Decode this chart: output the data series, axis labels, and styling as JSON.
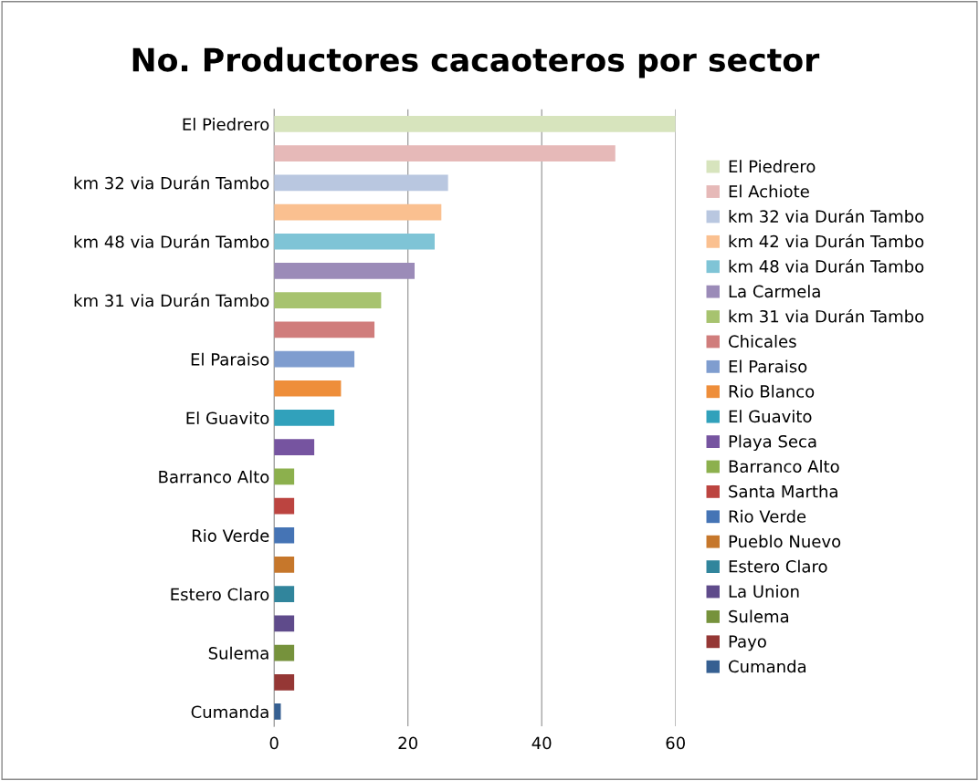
{
  "chart_data": {
    "type": "bar",
    "orientation": "horizontal",
    "stacked": true,
    "title": "No. Productores cacaoteros por sector",
    "categories": [
      "El Piedrero",
      null,
      "km 32 via Durán Tambo",
      null,
      "km 48 via Durán Tambo",
      null,
      "km 31 via Durán Tambo",
      null,
      "El Paraiso",
      null,
      "El Guavito",
      null,
      "Barranco Alto",
      null,
      "Rio Verde",
      null,
      "Estero Claro",
      null,
      "Sulema",
      null,
      "Cumanda"
    ],
    "series": [
      {
        "name": "El Piedrero",
        "color": "#d7e4bd",
        "values": [
          60,
          null,
          null,
          null,
          null,
          null,
          null,
          null,
          null,
          null,
          null,
          null,
          null,
          null,
          null,
          null,
          null,
          null,
          null,
          null,
          null
        ]
      },
      {
        "name": "El Achiote",
        "color": "#e6b9b8",
        "values": [
          null,
          51,
          null,
          null,
          null,
          null,
          null,
          null,
          null,
          null,
          null,
          null,
          null,
          null,
          null,
          null,
          null,
          null,
          null,
          null,
          null
        ]
      },
      {
        "name": "km 32 via Durán Tambo",
        "color": "#b9c7e0",
        "values": [
          null,
          null,
          26,
          null,
          null,
          null,
          null,
          null,
          null,
          null,
          null,
          null,
          null,
          null,
          null,
          null,
          null,
          null,
          null,
          null,
          null
        ]
      },
      {
        "name": "km 42 via Durán Tambo",
        "color": "#fac090",
        "values": [
          null,
          null,
          null,
          25,
          null,
          null,
          null,
          null,
          null,
          null,
          null,
          null,
          null,
          null,
          null,
          null,
          null,
          null,
          null,
          null,
          null
        ]
      },
      {
        "name": "km 48 via Durán Tambo",
        "color": "#7fc4d6",
        "values": [
          null,
          null,
          null,
          null,
          24,
          null,
          null,
          null,
          null,
          null,
          null,
          null,
          null,
          null,
          null,
          null,
          null,
          null,
          null,
          null,
          null
        ]
      },
      {
        "name": "La Carmela",
        "color": "#9b8bb8",
        "values": [
          null,
          null,
          null,
          null,
          null,
          21,
          null,
          null,
          null,
          null,
          null,
          null,
          null,
          null,
          null,
          null,
          null,
          null,
          null,
          null,
          null
        ]
      },
      {
        "name": "km 31 via Durán Tambo",
        "color": "#a7c36f",
        "values": [
          null,
          null,
          null,
          null,
          null,
          null,
          16,
          null,
          null,
          null,
          null,
          null,
          null,
          null,
          null,
          null,
          null,
          null,
          null,
          null,
          null
        ]
      },
      {
        "name": "Chicales",
        "color": "#d07d7c",
        "values": [
          null,
          null,
          null,
          null,
          null,
          null,
          null,
          15,
          null,
          null,
          null,
          null,
          null,
          null,
          null,
          null,
          null,
          null,
          null,
          null,
          null
        ]
      },
      {
        "name": "El Paraiso",
        "color": "#7f9dcf",
        "values": [
          null,
          null,
          null,
          null,
          null,
          null,
          null,
          null,
          12,
          null,
          null,
          null,
          null,
          null,
          null,
          null,
          null,
          null,
          null,
          null,
          null
        ]
      },
      {
        "name": "Rio Blanco",
        "color": "#ee8e3a",
        "values": [
          null,
          null,
          null,
          null,
          null,
          null,
          null,
          null,
          null,
          10,
          null,
          null,
          null,
          null,
          null,
          null,
          null,
          null,
          null,
          null,
          null
        ]
      },
      {
        "name": "El Guavito",
        "color": "#31a1bb",
        "values": [
          null,
          null,
          null,
          null,
          null,
          null,
          null,
          null,
          null,
          null,
          9,
          null,
          null,
          null,
          null,
          null,
          null,
          null,
          null,
          null,
          null
        ]
      },
      {
        "name": "Playa Seca",
        "color": "#7654a0",
        "values": [
          null,
          null,
          null,
          null,
          null,
          null,
          null,
          null,
          null,
          null,
          null,
          6,
          null,
          null,
          null,
          null,
          null,
          null,
          null,
          null,
          null
        ]
      },
      {
        "name": "Barranco Alto",
        "color": "#8cb04d",
        "values": [
          null,
          null,
          null,
          null,
          null,
          null,
          null,
          null,
          null,
          null,
          null,
          null,
          3,
          null,
          null,
          null,
          null,
          null,
          null,
          null,
          null
        ]
      },
      {
        "name": "Santa Martha",
        "color": "#bc4440",
        "values": [
          null,
          null,
          null,
          null,
          null,
          null,
          null,
          null,
          null,
          null,
          null,
          null,
          null,
          3,
          null,
          null,
          null,
          null,
          null,
          null,
          null
        ]
      },
      {
        "name": "Rio Verde",
        "color": "#4574b5",
        "values": [
          null,
          null,
          null,
          null,
          null,
          null,
          null,
          null,
          null,
          null,
          null,
          null,
          null,
          null,
          3,
          null,
          null,
          null,
          null,
          null,
          null
        ]
      },
      {
        "name": "Pueblo Nuevo",
        "color": "#c6772b",
        "values": [
          null,
          null,
          null,
          null,
          null,
          null,
          null,
          null,
          null,
          null,
          null,
          null,
          null,
          null,
          null,
          3,
          null,
          null,
          null,
          null,
          null
        ]
      },
      {
        "name": "Estero Claro",
        "color": "#31859c",
        "values": [
          null,
          null,
          null,
          null,
          null,
          null,
          null,
          null,
          null,
          null,
          null,
          null,
          null,
          null,
          null,
          null,
          3,
          null,
          null,
          null,
          null
        ]
      },
      {
        "name": "La Union",
        "color": "#5f4b8b",
        "values": [
          null,
          null,
          null,
          null,
          null,
          null,
          null,
          null,
          null,
          null,
          null,
          null,
          null,
          null,
          null,
          null,
          null,
          3,
          null,
          null,
          null
        ]
      },
      {
        "name": "Sulema",
        "color": "#76923c",
        "values": [
          null,
          null,
          null,
          null,
          null,
          null,
          null,
          null,
          null,
          null,
          null,
          null,
          null,
          null,
          null,
          null,
          null,
          null,
          3,
          null,
          null
        ]
      },
      {
        "name": "Payo",
        "color": "#953735",
        "values": [
          null,
          null,
          null,
          null,
          null,
          null,
          null,
          null,
          null,
          null,
          null,
          null,
          null,
          null,
          null,
          null,
          null,
          null,
          null,
          3,
          null
        ]
      },
      {
        "name": "Cumanda",
        "color": "#366092",
        "values": [
          null,
          null,
          null,
          null,
          null,
          null,
          null,
          null,
          null,
          null,
          null,
          null,
          null,
          null,
          null,
          null,
          null,
          null,
          null,
          null,
          1
        ]
      }
    ],
    "xlim": [
      0,
      60
    ],
    "xticks": [
      0,
      20,
      40,
      60
    ],
    "grid": "x",
    "legend": "right"
  }
}
